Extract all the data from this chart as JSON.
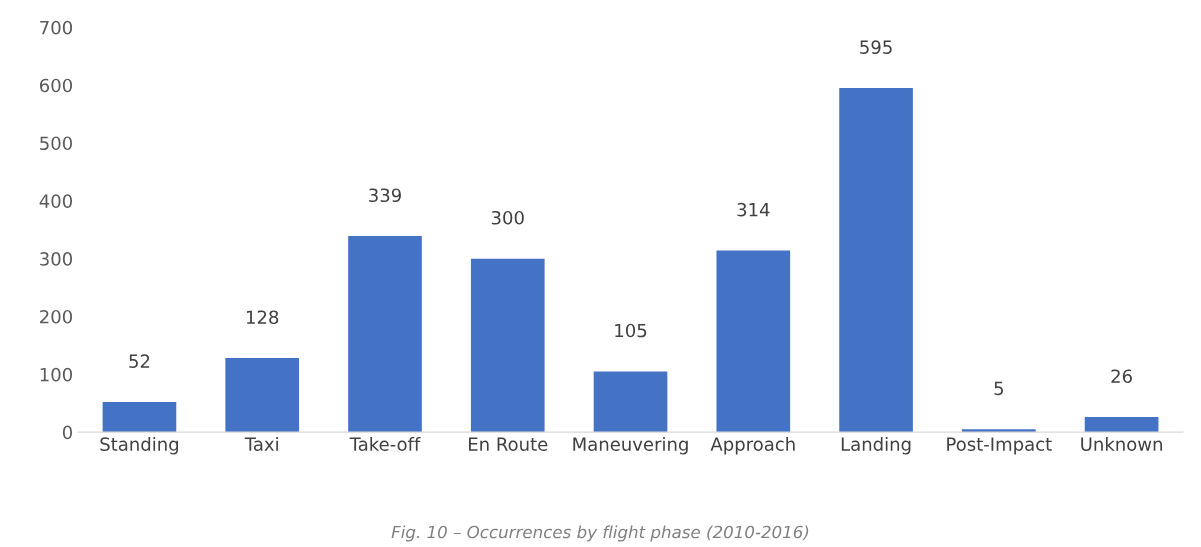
{
  "chart_data": {
    "type": "bar",
    "categories": [
      "Standing",
      "Taxi",
      "Take-off",
      "En Route",
      "Maneuvering",
      "Approach",
      "Landing",
      "Post-Impact",
      "Unknown"
    ],
    "values": [
      52,
      128,
      339,
      300,
      105,
      314,
      595,
      5,
      26
    ],
    "color": "#4472c4",
    "ylim": [
      0,
      700
    ],
    "yticks": [
      0,
      100,
      200,
      300,
      400,
      500,
      600,
      700
    ],
    "data_labels": true,
    "grid": false,
    "annotations": [
      "Fig. 10 – Occurrences by flight phase (2010-2016)"
    ]
  }
}
